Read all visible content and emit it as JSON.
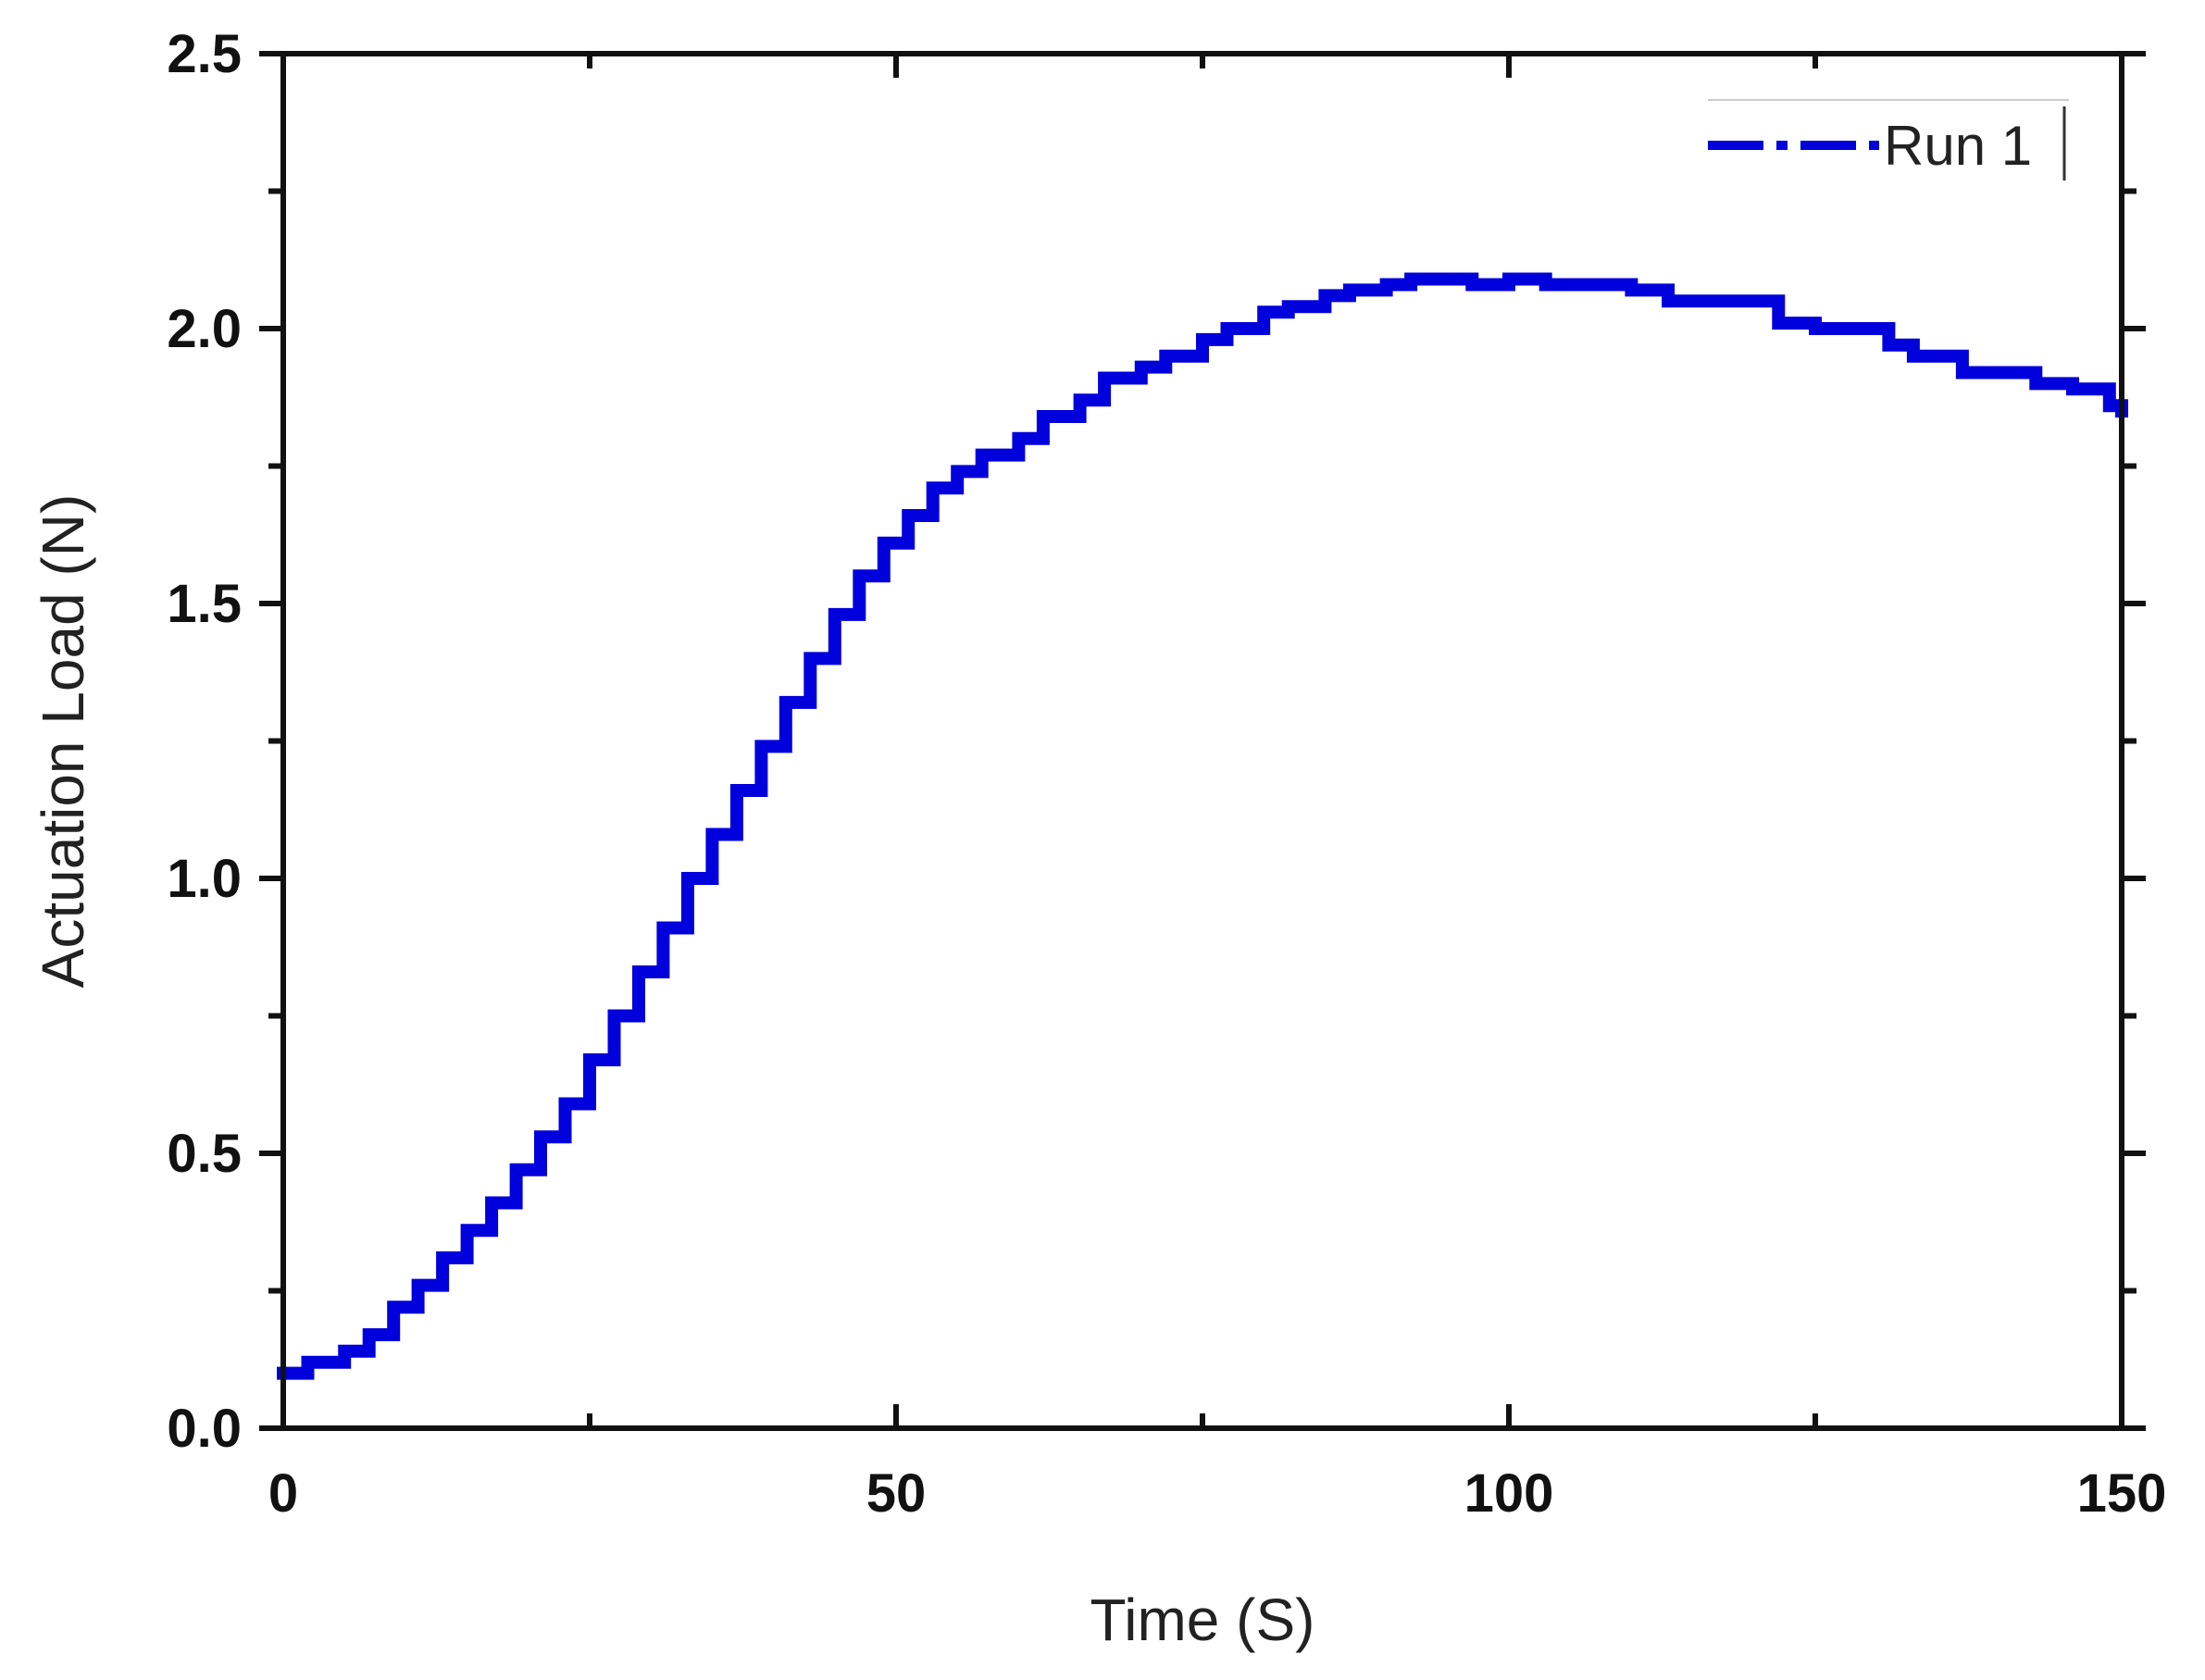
{
  "chart_data": {
    "type": "line",
    "xlabel": "Time (S)",
    "ylabel": "Actuation Load (N)",
    "xlim": [
      0,
      150
    ],
    "ylim": [
      0,
      2.5
    ],
    "x_ticks": [
      0,
      50,
      100,
      150
    ],
    "x_tick_labels": [
      "0",
      "50",
      "100",
      "150"
    ],
    "y_ticks": [
      0,
      0.5,
      1.0,
      1.5,
      2.0,
      2.5
    ],
    "y_tick_labels": [
      "0.0",
      "0.5",
      "1.0",
      "1.5",
      "2.0",
      "2.5"
    ],
    "grid": false,
    "legend_position": "top-right",
    "series": [
      {
        "name": "Run 1",
        "color": "#0000dd",
        "line_style": "step",
        "x": [
          0,
          2,
          5,
          7,
          9,
          11,
          13,
          15,
          17,
          19,
          21,
          23,
          25,
          27,
          29,
          31,
          33,
          35,
          37,
          39,
          41,
          43,
          45,
          47,
          49,
          51,
          53,
          55,
          57,
          60,
          62,
          65,
          67,
          70,
          72,
          75,
          77,
          80,
          82,
          85,
          87,
          90,
          92,
          95,
          97,
          100,
          103,
          106,
          110,
          113,
          116,
          120,
          122,
          125,
          128,
          131,
          133,
          137,
          140,
          143,
          146,
          149,
          150
        ],
        "y": [
          0.1,
          0.12,
          0.14,
          0.17,
          0.22,
          0.26,
          0.31,
          0.36,
          0.41,
          0.47,
          0.53,
          0.59,
          0.67,
          0.75,
          0.83,
          0.91,
          1.0,
          1.08,
          1.16,
          1.24,
          1.32,
          1.4,
          1.48,
          1.55,
          1.61,
          1.66,
          1.71,
          1.74,
          1.77,
          1.8,
          1.84,
          1.87,
          1.91,
          1.93,
          1.95,
          1.98,
          2.0,
          2.03,
          2.04,
          2.06,
          2.07,
          2.08,
          2.09,
          2.09,
          2.08,
          2.09,
          2.08,
          2.08,
          2.07,
          2.05,
          2.05,
          2.05,
          2.01,
          2.0,
          2.0,
          1.97,
          1.95,
          1.92,
          1.92,
          1.9,
          1.89,
          1.86,
          1.85
        ]
      }
    ]
  }
}
